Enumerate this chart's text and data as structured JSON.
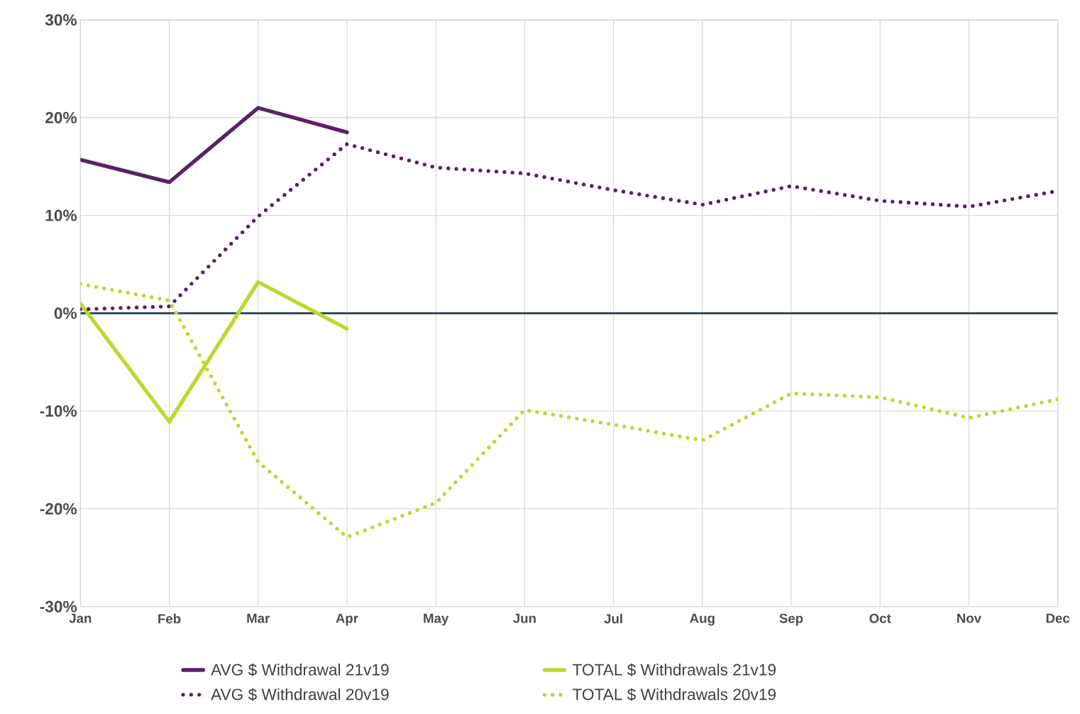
{
  "chart_data": {
    "type": "line",
    "categories": [
      "Jan",
      "Feb",
      "Mar",
      "Apr",
      "May",
      "Jun",
      "Jul",
      "Aug",
      "Sep",
      "Oct",
      "Nov",
      "Dec"
    ],
    "series": [
      {
        "name": "AVG $ Withdrawal 21v19",
        "color": "#5b1f6b",
        "line_style": "solid",
        "values": [
          15.7,
          13.4,
          21.0,
          18.5,
          null,
          null,
          null,
          null,
          null,
          null,
          null,
          null
        ]
      },
      {
        "name": "TOTAL $ Withdrawals 21v19",
        "color": "#bfd730",
        "line_style": "solid",
        "values": [
          1.0,
          -11.1,
          3.2,
          -1.6,
          null,
          null,
          null,
          null,
          null,
          null,
          null,
          null
        ]
      },
      {
        "name": "AVG $ Withdrawal 20v19",
        "color": "#5b1f6b",
        "line_style": "dotted",
        "values": [
          0.4,
          0.7,
          9.9,
          17.3,
          14.9,
          14.3,
          12.6,
          11.1,
          13.0,
          11.5,
          10.9,
          12.5
        ]
      },
      {
        "name": "TOTAL $ Withdrawals 20v19",
        "color": "#bfd730",
        "line_style": "dotted",
        "values": [
          3.0,
          1.3,
          -15.2,
          -22.9,
          -19.4,
          -9.9,
          -11.4,
          -13.0,
          -8.2,
          -8.6,
          -10.7,
          -8.8
        ]
      }
    ],
    "ylim": [
      -30,
      30
    ],
    "yticks": [
      {
        "value": -30,
        "label": "-30%"
      },
      {
        "value": -20,
        "label": "-20%"
      },
      {
        "value": -10,
        "label": "-10%"
      },
      {
        "value": 0,
        "label": "0%"
      },
      {
        "value": 10,
        "label": "10%"
      },
      {
        "value": 20,
        "label": "20%"
      },
      {
        "value": 30,
        "label": "30%"
      }
    ],
    "ref_lines": [
      {
        "axis": "y",
        "value": 0,
        "color": "#1f3f5f"
      }
    ],
    "grid": true,
    "legend": "bottom",
    "marker": "none"
  }
}
